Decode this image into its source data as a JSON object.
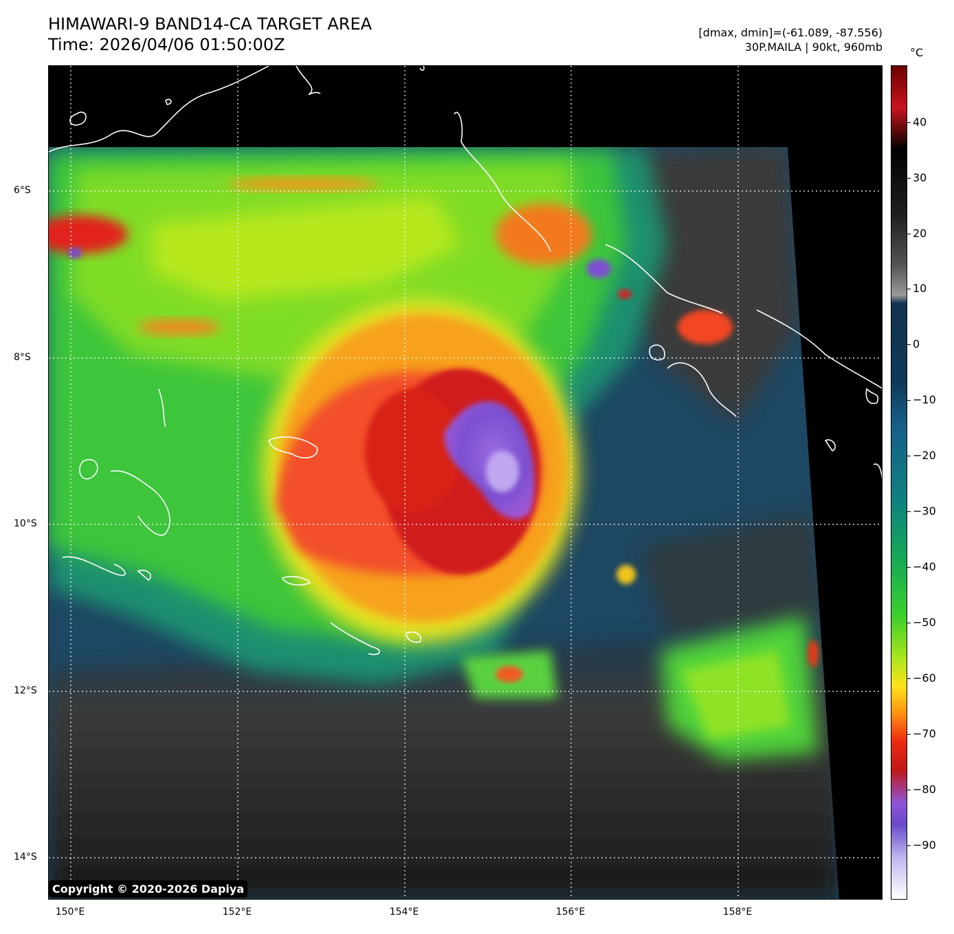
{
  "header": {
    "title": "HIMAWARI-9 BAND14-CA TARGET AREA",
    "time": "Time: 2026/04/06 01:50:00Z",
    "dmax_dmin": "[dmax, dmin]=(-61.089, -87.556)",
    "storm": "30P.MAILA | 90kt, 960mb"
  },
  "map": {
    "copyright": "Copyright © 2020-2026 Dapiya",
    "lat_labels": [
      "6°S",
      "8°S",
      "10°S",
      "12°S",
      "14°S"
    ],
    "lon_labels": [
      "150°E",
      "152°E",
      "154°E",
      "156°E",
      "158°E"
    ],
    "gridlines": "dotted",
    "coastline_color": "#ffffff"
  },
  "colorbar": {
    "unit": "°C",
    "ticks": [
      "40",
      "30",
      "20",
      "10",
      "0",
      "−10",
      "−20",
      "−30",
      "−40",
      "−50",
      "−60",
      "−70",
      "−80",
      "−90"
    ]
  }
}
